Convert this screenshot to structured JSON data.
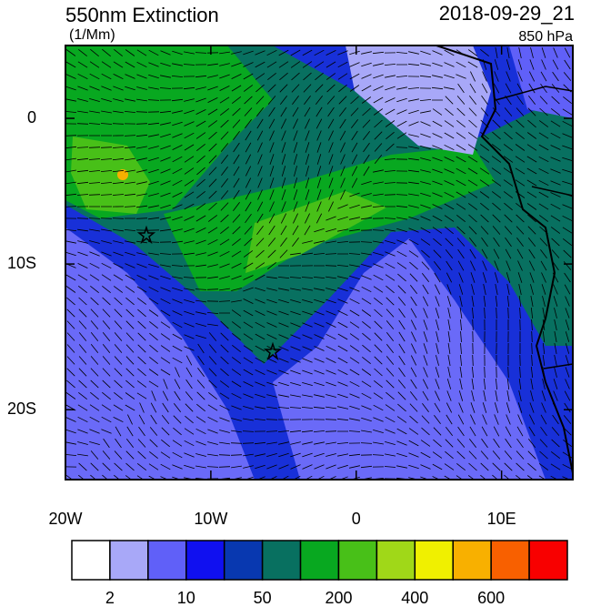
{
  "header": {
    "title": "550nm Extinction",
    "units": "(1/Mm)",
    "date": "2018-09-29_21",
    "level": "850 hPa"
  },
  "map": {
    "xlim": [
      -20,
      14.9
    ],
    "ylim": [
      -24.8,
      5
    ],
    "xticks": [
      {
        "value": -20,
        "label": "20W"
      },
      {
        "value": -10,
        "label": "10W"
      },
      {
        "value": 0,
        "label": "0"
      },
      {
        "value": 10,
        "label": "10E"
      }
    ],
    "yticks": [
      {
        "value": 0,
        "label": "0"
      },
      {
        "value": -10,
        "label": "10S"
      },
      {
        "value": -20,
        "label": "20S"
      }
    ]
  },
  "colorbar": {
    "colors": [
      "#ffffff",
      "#a8a8f8",
      "#6060f8",
      "#1010f0",
      "#0838b0",
      "#087060",
      "#08a820",
      "#48c018",
      "#a0d818",
      "#f0f000",
      "#f8b000",
      "#f86000",
      "#f80000"
    ],
    "labels": [
      "2",
      "10",
      "50",
      "200",
      "400",
      "600"
    ]
  }
}
